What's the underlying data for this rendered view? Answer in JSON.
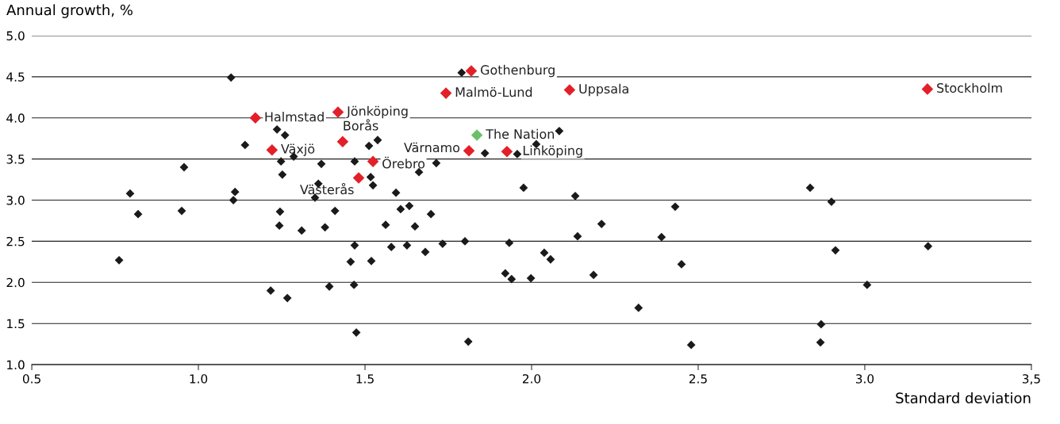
{
  "chart_data": {
    "type": "scatter",
    "xlabel": "Standard deviation",
    "ylabel": "Annual growth, %",
    "xlim": [
      0.5,
      3.5
    ],
    "ylim": [
      1.0,
      5.0
    ],
    "xticks": [
      0.5,
      {
        "value": 1.0,
        "label": "1.0"
      },
      1.5,
      {
        "value": 2.0,
        "label": "2.0"
      },
      2.5,
      {
        "value": 3.0,
        "label": "3.0"
      },
      {
        "value": 3.5,
        "label": "3,5"
      }
    ],
    "yticks": [
      {
        "value": 1.0,
        "label": "1.0"
      },
      1.5,
      {
        "value": 2.0,
        "label": "2.0"
      },
      2.5,
      {
        "value": 3.0,
        "label": "3.0"
      },
      3.5,
      {
        "value": 4.0,
        "label": "4.0"
      },
      4.5,
      {
        "value": 5.0,
        "label": "5.0"
      }
    ],
    "grid": "y",
    "legend": false,
    "marker": "diamond",
    "series": [
      {
        "color": "#1a1a1a",
        "x": [
          0.762,
          0.795,
          0.819,
          0.95,
          0.957,
          1.098,
          1.105,
          1.11,
          1.14,
          1.236,
          1.26,
          1.248,
          1.252,
          1.245,
          1.243,
          1.286,
          1.217,
          1.267,
          1.31,
          1.369,
          1.36,
          1.35,
          1.38,
          1.41,
          1.393,
          1.469,
          1.457,
          1.469,
          1.467,
          1.474,
          1.512,
          1.538,
          1.517,
          1.524,
          1.519,
          1.562,
          1.593,
          1.607,
          1.633,
          1.626,
          1.579,
          1.65,
          1.662,
          1.681,
          1.698,
          1.714,
          1.733,
          1.79,
          1.8,
          1.81,
          1.86,
          1.933,
          1.921,
          1.94,
          1.957,
          1.976,
          1.998,
          2.014,
          2.083,
          2.038,
          2.057,
          2.131,
          2.138,
          2.186,
          2.21,
          2.321,
          2.39,
          2.431,
          2.45,
          2.479,
          2.836,
          2.9,
          2.912,
          3.007,
          2.869,
          2.867,
          3.19
        ],
        "values": [
          2.27,
          3.08,
          2.83,
          2.87,
          3.4,
          4.49,
          3.0,
          3.1,
          3.67,
          3.86,
          3.79,
          3.47,
          3.31,
          2.86,
          2.69,
          3.53,
          1.9,
          1.81,
          2.63,
          3.44,
          3.2,
          3.03,
          2.67,
          2.87,
          1.95,
          3.47,
          2.25,
          2.45,
          1.97,
          1.39,
          3.66,
          3.73,
          3.28,
          3.18,
          2.26,
          2.7,
          3.09,
          2.89,
          2.93,
          2.45,
          2.43,
          2.68,
          3.34,
          2.37,
          2.83,
          3.45,
          2.47,
          4.55,
          2.5,
          1.28,
          3.57,
          2.48,
          2.11,
          2.04,
          3.56,
          3.15,
          2.05,
          3.68,
          3.84,
          2.36,
          2.28,
          3.05,
          2.56,
          2.09,
          2.71,
          1.69,
          2.55,
          2.92,
          2.22,
          1.24,
          3.15,
          2.98,
          2.39,
          1.97,
          1.49,
          1.27,
          2.44
        ]
      },
      {
        "color": "#e3202a",
        "x": [
          1.819,
          1.743,
          2.114,
          3.188,
          1.171,
          1.419,
          1.221,
          1.433,
          1.524,
          1.481,
          1.812,
          1.926
        ],
        "values": [
          4.57,
          4.3,
          4.34,
          4.35,
          4.0,
          4.07,
          3.61,
          3.71,
          3.47,
          3.27,
          3.6,
          3.59
        ]
      },
      {
        "color": "#6cbf6a",
        "x": [
          1.836
        ],
        "values": [
          3.79
        ]
      }
    ],
    "annotations": [
      {
        "text": "Gothenburg",
        "x": 1.819,
        "y": 4.57
      },
      {
        "text": "Malmö-Lund",
        "x": 1.743,
        "y": 4.3
      },
      {
        "text": "Uppsala",
        "x": 2.114,
        "y": 4.34
      },
      {
        "text": "Stockholm",
        "x": 3.188,
        "y": 4.35
      },
      {
        "text": "Halmstad",
        "x": 1.171,
        "y": 4.0
      },
      {
        "text": "Jönköping",
        "x": 1.419,
        "y": 4.07
      },
      {
        "text": "Växjö",
        "x": 1.221,
        "y": 3.61
      },
      {
        "text": "Borås",
        "x": 1.433,
        "y": 3.71
      },
      {
        "text": "Örebro",
        "x": 1.524,
        "y": 3.47
      },
      {
        "text": "Västerås",
        "x": 1.481,
        "y": 3.27
      },
      {
        "text": "Värnamo",
        "x": 1.812,
        "y": 3.6
      },
      {
        "text": "Linköping",
        "x": 1.926,
        "y": 3.59
      },
      {
        "text": "The Nation",
        "x": 1.836,
        "y": 3.79
      }
    ]
  }
}
